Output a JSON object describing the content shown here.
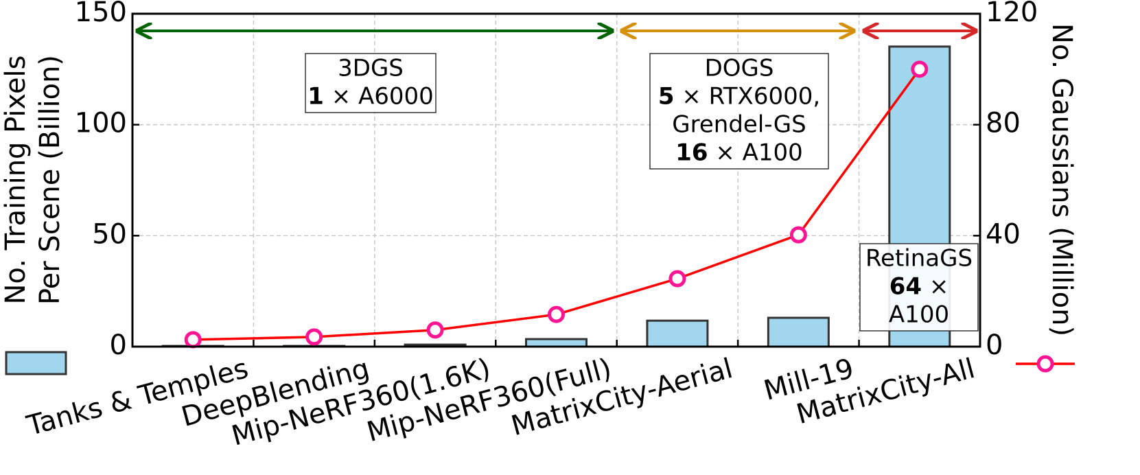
{
  "chart_data": {
    "type": "bar_line",
    "categories": [
      "Tanks & Temples",
      "DeepBlending",
      "Mip-NeRF360(1.6K)",
      "Mip-NeRF360(Full)",
      "MatrixCity-Aerial",
      "Mill-19",
      "MatrixCity-All"
    ],
    "ylabel": [
      "No. Training Pixels",
      "Per Scene (Billion)"
    ],
    "y2label": "No. Gaussians (Million)",
    "ylim": [
      0,
      150
    ],
    "yticks": [
      0,
      50,
      100,
      150
    ],
    "y2lim": [
      0,
      120
    ],
    "y2ticks": [
      0,
      40,
      80,
      120
    ],
    "grid": true,
    "series": [
      {
        "type": "bar",
        "color": "#a0d6ee",
        "values": [
          0.3,
          0.3,
          0.9,
          3.4,
          11.7,
          13,
          135.2
        ]
      },
      {
        "type": "line",
        "axis": "y2",
        "color": "#ff0000",
        "marker_color": "#ff1493",
        "values": [
          2.5,
          3.5,
          6,
          11.6,
          24.5,
          40.3,
          100
        ]
      }
    ],
    "annotations": [
      {
        "color": "#006400",
        "lines": [
          [
            {
              "text": "3DGS"
            }
          ],
          [
            {
              "text": "1",
              "bold": true
            },
            {
              "text": " × A6000"
            }
          ]
        ]
      },
      {
        "color": "#d4900a",
        "lines": [
          [
            {
              "text": "DOGS"
            }
          ],
          [
            {
              "text": "5",
              "bold": true
            },
            {
              "text": " × RTX6000,"
            }
          ],
          [
            {
              "text": "Grendel-GS"
            }
          ],
          [
            {
              "text": "16",
              "bold": true
            },
            {
              "text": " × A100"
            }
          ]
        ]
      },
      {
        "color": "#d62728",
        "lines": [
          [
            {
              "text": "RetinaGS"
            }
          ],
          [
            {
              "text": "64",
              "bold": true
            },
            {
              "text": " ×"
            }
          ],
          [
            {
              "text": "A100"
            }
          ]
        ]
      }
    ]
  }
}
